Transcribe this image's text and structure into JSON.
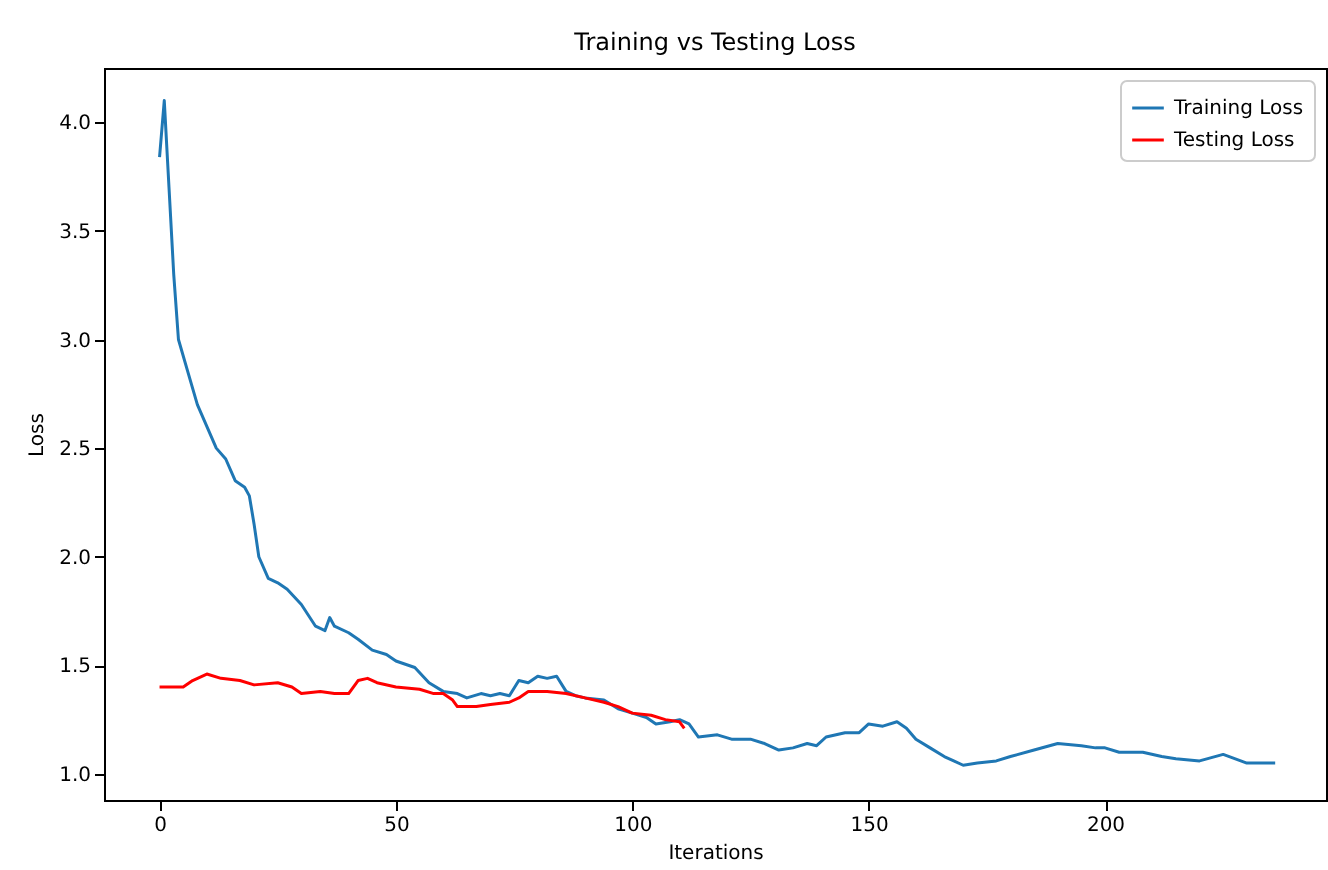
{
  "chart_data": {
    "type": "line",
    "title": "Training vs Testing Loss",
    "xlabel": "Iterations",
    "ylabel": "Loss",
    "xlim": [
      -11.75,
      246.75
    ],
    "ylim": [
      0.88,
      4.25
    ],
    "xticks": [
      0,
      50,
      100,
      150,
      200
    ],
    "yticks": [
      {
        "value": 1,
        "label": "1.0"
      },
      1.5,
      {
        "value": 2,
        "label": "2.0"
      },
      2.5,
      {
        "value": 3,
        "label": "3.0"
      },
      3.5,
      {
        "value": 4,
        "label": "4.0"
      }
    ],
    "legend": "top right",
    "grid": false,
    "series": [
      {
        "name": "Training Loss",
        "color": "#1f77b4",
        "x": [
          0,
          1,
          2,
          3,
          4,
          6,
          8,
          10,
          12,
          14,
          16,
          18,
          19,
          20,
          21,
          23,
          25,
          27,
          30,
          33,
          35,
          36,
          37,
          40,
          42,
          45,
          48,
          50,
          54,
          57,
          60,
          63,
          65,
          68,
          70,
          72,
          74,
          76,
          78,
          80,
          82,
          84,
          86,
          88,
          90,
          94,
          97,
          100,
          103,
          105,
          108,
          110,
          112,
          114,
          118,
          121,
          125,
          128,
          131,
          134,
          137,
          139,
          141,
          145,
          148,
          150,
          153,
          156,
          158,
          160,
          163,
          166,
          168,
          170,
          173,
          177,
          180,
          185,
          190,
          195,
          198,
          200,
          203,
          208,
          212,
          215,
          220,
          225,
          230,
          233,
          236
        ],
        "values": [
          3.84,
          4.1,
          3.7,
          3.3,
          3.0,
          2.85,
          2.7,
          2.6,
          2.5,
          2.45,
          2.35,
          2.32,
          2.28,
          2.15,
          2.0,
          1.9,
          1.88,
          1.85,
          1.78,
          1.68,
          1.66,
          1.72,
          1.68,
          1.65,
          1.62,
          1.57,
          1.55,
          1.52,
          1.49,
          1.42,
          1.38,
          1.37,
          1.35,
          1.37,
          1.36,
          1.37,
          1.36,
          1.43,
          1.42,
          1.45,
          1.44,
          1.45,
          1.38,
          1.36,
          1.35,
          1.34,
          1.3,
          1.28,
          1.26,
          1.23,
          1.24,
          1.25,
          1.23,
          1.17,
          1.18,
          1.16,
          1.16,
          1.14,
          1.11,
          1.12,
          1.14,
          1.13,
          1.17,
          1.19,
          1.19,
          1.23,
          1.22,
          1.24,
          1.21,
          1.16,
          1.12,
          1.08,
          1.06,
          1.04,
          1.05,
          1.06,
          1.08,
          1.11,
          1.14,
          1.13,
          1.12,
          1.12,
          1.1,
          1.1,
          1.08,
          1.07,
          1.06,
          1.09,
          1.05,
          1.05,
          1.05
        ]
      },
      {
        "name": "Testing Loss",
        "color": "#ff0000",
        "x": [
          0,
          2,
          5,
          7,
          10,
          13,
          17,
          20,
          25,
          28,
          30,
          34,
          37,
          40,
          42,
          44,
          46,
          50,
          55,
          58,
          60,
          62,
          63,
          67,
          70,
          74,
          76,
          78,
          82,
          86,
          90,
          94,
          97,
          100,
          104,
          107,
          110,
          111
        ],
        "values": [
          1.4,
          1.4,
          1.4,
          1.43,
          1.46,
          1.44,
          1.43,
          1.41,
          1.42,
          1.4,
          1.37,
          1.38,
          1.37,
          1.37,
          1.43,
          1.44,
          1.42,
          1.4,
          1.39,
          1.37,
          1.37,
          1.34,
          1.31,
          1.31,
          1.32,
          1.33,
          1.35,
          1.38,
          1.38,
          1.37,
          1.35,
          1.33,
          1.31,
          1.28,
          1.27,
          1.25,
          1.24,
          1.21
        ]
      }
    ]
  }
}
